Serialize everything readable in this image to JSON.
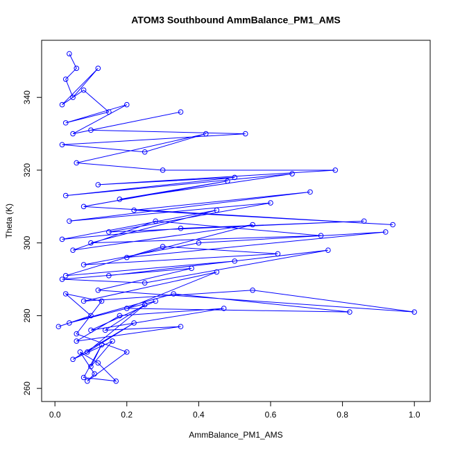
{
  "chart_data": {
    "type": "line",
    "title": "ATOM3 Southbound AmmBalance_PM1_AMS",
    "x_label": "AmmBalance_PM1_AMS",
    "y_label": "Theta (K)",
    "markers": true,
    "color": "#0000ff",
    "xlim": [
      -0.037,
      1.044
    ],
    "ylim": [
      256.4,
      355.7
    ],
    "xticks": [
      {
        "value": 0,
        "label": "0.0"
      },
      0.2,
      0.4,
      0.6,
      0.8,
      {
        "value": 1,
        "label": "1.0"
      }
    ],
    "yticks": [
      260,
      280,
      300,
      320,
      340
    ],
    "series": [
      {
        "x": [
          0.04,
          0.06,
          0.03,
          0.05,
          0.12,
          0.02,
          0.08,
          0.15,
          0.03,
          0.2,
          0.05,
          0.35,
          0.1,
          0.53,
          0.02,
          0.25,
          0.42,
          0.06,
          0.3,
          0.78,
          0.12,
          0.5,
          0.03,
          0.66,
          0.18,
          0.48,
          0.08,
          0.94,
          0.22,
          0.71,
          0.04,
          0.6,
          0.15,
          0.86,
          0.35,
          0.02,
          0.45,
          0.1,
          0.74,
          0.28,
          0.05,
          0.55,
          0.2,
          0.92,
          0.4,
          0.08,
          0.62,
          0.3,
          0.03,
          0.5,
          0.15,
          0.76,
          0.25,
          0.02,
          0.38,
          0.12,
          1.0,
          0.55,
          0.08,
          0.45,
          0.2,
          0.82,
          0.33,
          0.04,
          0.28,
          0.1,
          0.47,
          0.18,
          0.06,
          0.35,
          0.14,
          0.25,
          0.09,
          0.22,
          0.05,
          0.16,
          0.1,
          0.13,
          0.08,
          0.17,
          0.12,
          0.07,
          0.11,
          0.09,
          0.2,
          0.06,
          0.13,
          0.03,
          0.1,
          0.01
        ],
        "values": [
          352,
          348,
          345,
          340,
          348,
          338,
          342,
          336,
          333,
          338,
          330,
          336,
          331,
          330,
          327,
          325,
          330,
          322,
          320,
          320,
          316,
          318,
          313,
          319,
          312,
          317,
          310,
          305,
          309,
          314,
          306,
          311,
          303,
          306,
          304,
          301,
          309,
          300,
          302,
          306,
          298,
          305,
          296,
          303,
          300,
          294,
          297,
          299,
          291,
          295,
          291,
          298,
          289,
          290,
          293,
          287,
          281,
          287,
          284,
          292,
          282,
          281,
          286,
          278,
          284,
          276,
          282,
          280,
          273,
          277,
          276,
          283,
          270,
          278,
          268,
          273,
          266,
          272,
          263,
          262,
          267,
          270,
          264,
          262,
          270,
          275,
          284,
          286,
          280,
          277
        ]
      }
    ]
  }
}
